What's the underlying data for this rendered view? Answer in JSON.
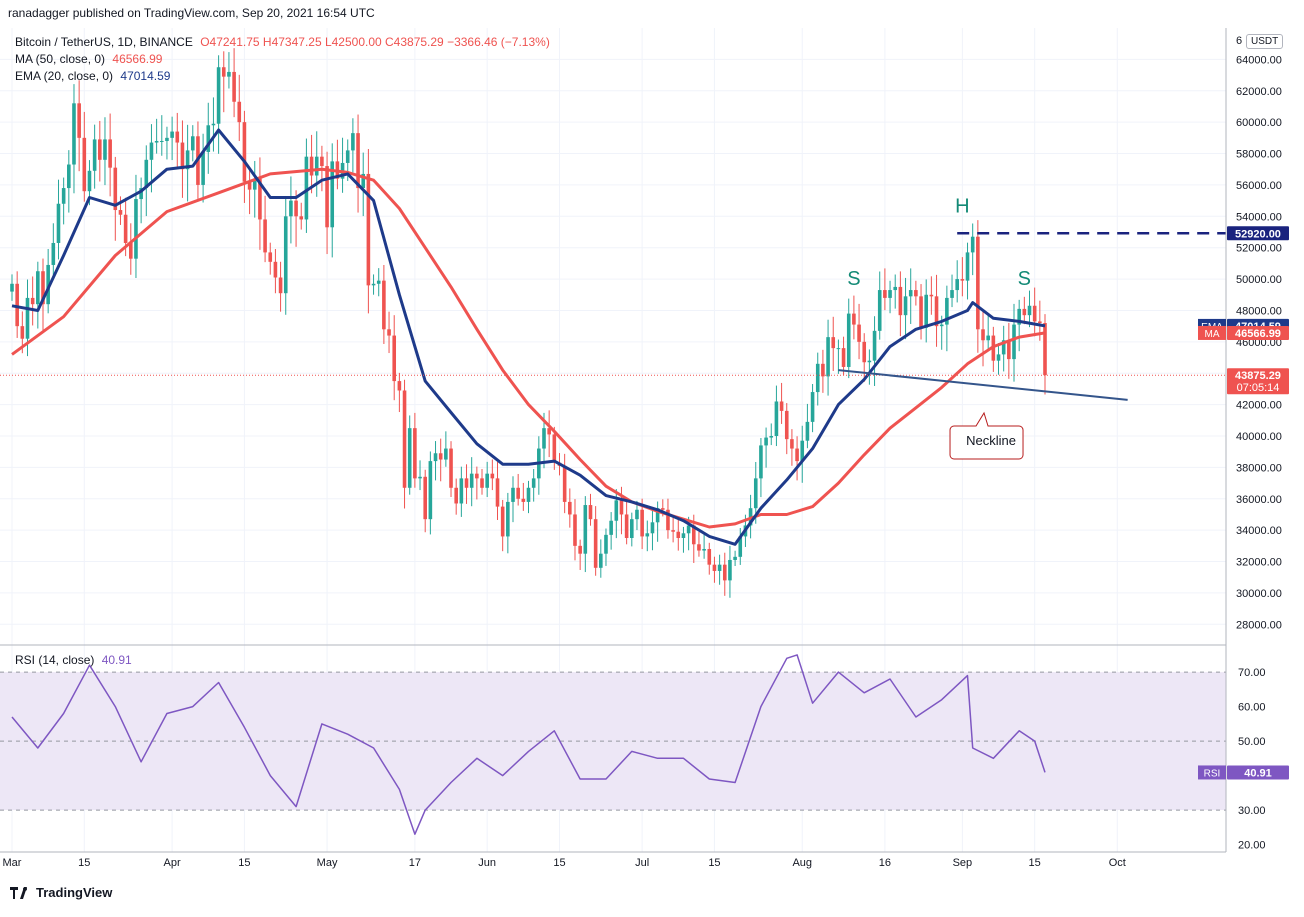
{
  "header": {
    "published": "ranadagger published on TradingView.com, Sep 20, 2021 16:54 UTC"
  },
  "legend": {
    "symbol": "Bitcoin / TetherUS, 1D, BINANCE",
    "ohlc": "O47241.75  H47347.25  L42500.00  C43875.29  −3366.46 (−7.13%)",
    "ma_label": "MA (50, close, 0)",
    "ma_value": "46566.99",
    "ema_label": "EMA (20, close, 0)",
    "ema_value": "47014.59",
    "rsi_label": "RSI (14, close)",
    "rsi_value": "40.91"
  },
  "colors": {
    "up": "#26a69a",
    "down": "#ef5350",
    "ma": "#ef5350",
    "ema": "#1e3a8a",
    "rsi": "#7e57c2",
    "rsi_band": "#ede7f6",
    "neckline": "#34558b",
    "resistance": "#1a237e"
  },
  "currency_badge": "USDT",
  "price_axis": {
    "ticks": [
      "28000.00",
      "30000.00",
      "32000.00",
      "34000.00",
      "36000.00",
      "38000.00",
      "40000.00",
      "42000.00",
      "44000.00",
      "46000.00",
      "48000.00",
      "50000.00",
      "52000.00",
      "54000.00",
      "56000.00",
      "58000.00",
      "60000.00",
      "62000.00",
      "64000.00"
    ],
    "tick_values": [
      28000,
      30000,
      32000,
      34000,
      36000,
      38000,
      40000,
      42000,
      44000,
      46000,
      48000,
      50000,
      52000,
      54000,
      56000,
      58000,
      60000,
      62000,
      64000
    ],
    "top_partial": "6"
  },
  "rsi_axis": {
    "ticks": [
      "20.00",
      "30.00",
      "40.00",
      "50.00",
      "60.00",
      "70.00"
    ],
    "tick_values": [
      20,
      30,
      40,
      50,
      60,
      70
    ]
  },
  "time_axis": {
    "labels": [
      "Mar",
      "15",
      "Apr",
      "15",
      "May",
      "17",
      "Jun",
      "15",
      "Jul",
      "15",
      "Aug",
      "16",
      "Sep",
      "15",
      "Oct"
    ],
    "label_days": [
      0,
      14,
      31,
      45,
      61,
      78,
      92,
      106,
      122,
      136,
      153,
      169,
      184,
      198,
      214
    ]
  },
  "badges": {
    "ema": {
      "name": "EMA",
      "value": "47014.59"
    },
    "ma": {
      "name": "MA",
      "value": "46566.99"
    },
    "price": {
      "value": "43875.29",
      "countdown": "07:05:14"
    },
    "resistance": {
      "value": "52920.00"
    },
    "rsi": {
      "name": "RSI",
      "value": "40.91"
    }
  },
  "annotations": {
    "head": "H",
    "shoulder_left": "S",
    "shoulder_right": "S",
    "neckline": "Neckline"
  },
  "footer": {
    "brand": "TradingView"
  },
  "chart_data": {
    "type": "candlestick",
    "title": "Bitcoin / TetherUS, 1D, BINANCE",
    "x_start": "2021-02-25",
    "x_end": "2021-10-04",
    "last_close": 43875.29,
    "ohlc_closes": [
      [
        0,
        49700
      ],
      [
        1,
        47000
      ],
      [
        2,
        46200
      ],
      [
        3,
        48800
      ],
      [
        4,
        48400
      ],
      [
        5,
        50500
      ],
      [
        6,
        48400
      ],
      [
        7,
        50900
      ],
      [
        8,
        52300
      ],
      [
        9,
        54800
      ],
      [
        10,
        55800
      ],
      [
        11,
        57300
      ],
      [
        12,
        61200
      ],
      [
        13,
        59000
      ],
      [
        14,
        55600
      ],
      [
        15,
        56900
      ],
      [
        16,
        58900
      ],
      [
        17,
        57600
      ],
      [
        18,
        58900
      ],
      [
        19,
        57100
      ],
      [
        20,
        54400
      ],
      [
        21,
        54100
      ],
      [
        22,
        52300
      ],
      [
        23,
        51300
      ],
      [
        24,
        55100
      ],
      [
        25,
        55800
      ],
      [
        26,
        57600
      ],
      [
        27,
        58700
      ],
      [
        28,
        58800
      ],
      [
        29,
        58800
      ],
      [
        30,
        59000
      ],
      [
        31,
        59400
      ],
      [
        32,
        58700
      ],
      [
        33,
        57000
      ],
      [
        34,
        58200
      ],
      [
        35,
        59100
      ],
      [
        36,
        56000
      ],
      [
        37,
        58100
      ],
      [
        38,
        59800
      ],
      [
        39,
        59900
      ],
      [
        40,
        63500
      ],
      [
        41,
        62900
      ],
      [
        42,
        63200
      ],
      [
        43,
        61300
      ],
      [
        44,
        60000
      ],
      [
        45,
        56200
      ],
      [
        46,
        55700
      ],
      [
        47,
        56400
      ],
      [
        48,
        53800
      ],
      [
        49,
        51700
      ],
      [
        50,
        51100
      ],
      [
        51,
        50100
      ],
      [
        52,
        49100
      ],
      [
        53,
        54000
      ],
      [
        54,
        55000
      ],
      [
        55,
        54000
      ],
      [
        56,
        53800
      ],
      [
        57,
        57800
      ],
      [
        58,
        56600
      ],
      [
        59,
        57800
      ],
      [
        60,
        57200
      ],
      [
        61,
        53300
      ],
      [
        62,
        57500
      ],
      [
        63,
        56400
      ],
      [
        64,
        57400
      ],
      [
        65,
        58200
      ],
      [
        66,
        59300
      ],
      [
        67,
        55800
      ],
      [
        68,
        56700
      ],
      [
        69,
        49600
      ],
      [
        70,
        49700
      ],
      [
        71,
        49900
      ],
      [
        72,
        46800
      ],
      [
        73,
        46400
      ],
      [
        74,
        43500
      ],
      [
        75,
        42900
      ],
      [
        76,
        36700
      ],
      [
        77,
        40500
      ],
      [
        78,
        37300
      ],
      [
        79,
        37400
      ],
      [
        80,
        34700
      ],
      [
        81,
        38400
      ],
      [
        82,
        38900
      ],
      [
        83,
        38500
      ],
      [
        84,
        39200
      ],
      [
        85,
        36700
      ],
      [
        86,
        35700
      ],
      [
        87,
        37300
      ],
      [
        88,
        36700
      ],
      [
        89,
        37600
      ],
      [
        90,
        37300
      ],
      [
        91,
        36700
      ],
      [
        92,
        37600
      ],
      [
        93,
        37300
      ],
      [
        94,
        35500
      ],
      [
        95,
        33600
      ],
      [
        96,
        35800
      ],
      [
        97,
        36700
      ],
      [
        98,
        36000
      ],
      [
        99,
        35800
      ],
      [
        100,
        36700
      ],
      [
        101,
        37300
      ],
      [
        102,
        39200
      ],
      [
        103,
        40500
      ],
      [
        104,
        40100
      ],
      [
        105,
        38300
      ],
      [
        106,
        38100
      ],
      [
        107,
        35800
      ],
      [
        108,
        35000
      ],
      [
        109,
        33000
      ],
      [
        110,
        32500
      ],
      [
        111,
        35600
      ],
      [
        112,
        34700
      ],
      [
        113,
        31600
      ],
      [
        114,
        32500
      ],
      [
        115,
        33700
      ],
      [
        116,
        34600
      ],
      [
        117,
        35900
      ],
      [
        118,
        35000
      ],
      [
        119,
        33500
      ],
      [
        120,
        34700
      ],
      [
        121,
        35300
      ],
      [
        122,
        33600
      ],
      [
        123,
        33800
      ],
      [
        124,
        34500
      ],
      [
        125,
        35400
      ],
      [
        126,
        35300
      ],
      [
        127,
        34000
      ],
      [
        128,
        33900
      ],
      [
        129,
        33500
      ],
      [
        130,
        33800
      ],
      [
        131,
        34300
      ],
      [
        132,
        33100
      ],
      [
        133,
        32700
      ],
      [
        134,
        32800
      ],
      [
        135,
        31800
      ],
      [
        136,
        31400
      ],
      [
        137,
        31800
      ],
      [
        138,
        30800
      ],
      [
        139,
        32100
      ],
      [
        140,
        32300
      ],
      [
        141,
        33600
      ],
      [
        142,
        34300
      ],
      [
        143,
        35400
      ],
      [
        144,
        37300
      ],
      [
        145,
        39400
      ],
      [
        146,
        39900
      ],
      [
        147,
        40000
      ],
      [
        148,
        42200
      ],
      [
        149,
        41600
      ],
      [
        150,
        39800
      ],
      [
        151,
        39200
      ],
      [
        152,
        38400
      ],
      [
        153,
        39700
      ],
      [
        154,
        40900
      ],
      [
        155,
        42800
      ],
      [
        156,
        44600
      ],
      [
        157,
        43800
      ],
      [
        158,
        46300
      ],
      [
        159,
        45600
      ],
      [
        160,
        45600
      ],
      [
        161,
        44400
      ],
      [
        162,
        47800
      ],
      [
        163,
        47100
      ],
      [
        164,
        46000
      ],
      [
        165,
        44700
      ],
      [
        166,
        44800
      ],
      [
        167,
        46700
      ],
      [
        168,
        49300
      ],
      [
        169,
        48800
      ],
      [
        170,
        49300
      ],
      [
        171,
        49500
      ],
      [
        172,
        47700
      ],
      [
        173,
        48900
      ],
      [
        174,
        49300
      ],
      [
        175,
        48900
      ],
      [
        176,
        46900
      ],
      [
        177,
        49000
      ],
      [
        178,
        48900
      ],
      [
        179,
        47000
      ],
      [
        180,
        47100
      ],
      [
        181,
        48800
      ],
      [
        182,
        49300
      ],
      [
        183,
        50000
      ],
      [
        184,
        49900
      ],
      [
        185,
        51700
      ],
      [
        186,
        52700
      ],
      [
        187,
        46800
      ],
      [
        188,
        46100
      ],
      [
        189,
        46400
      ],
      [
        190,
        44800
      ],
      [
        191,
        45200
      ],
      [
        192,
        46100
      ],
      [
        193,
        44900
      ],
      [
        194,
        47100
      ],
      [
        195,
        48100
      ],
      [
        196,
        47700
      ],
      [
        197,
        48300
      ],
      [
        198,
        47300
      ],
      [
        199,
        47200
      ],
      [
        200,
        43875
      ]
    ],
    "ma50_points": [
      [
        0,
        45200
      ],
      [
        10,
        47600
      ],
      [
        20,
        51500
      ],
      [
        30,
        54300
      ],
      [
        40,
        55500
      ],
      [
        50,
        56700
      ],
      [
        60,
        57000
      ],
      [
        65,
        56800
      ],
      [
        70,
        56300
      ],
      [
        75,
        54500
      ],
      [
        80,
        52000
      ],
      [
        85,
        49500
      ],
      [
        90,
        46800
      ],
      [
        95,
        44200
      ],
      [
        100,
        42000
      ],
      [
        105,
        40300
      ],
      [
        110,
        38500
      ],
      [
        115,
        36800
      ],
      [
        120,
        35800
      ],
      [
        125,
        35200
      ],
      [
        130,
        34700
      ],
      [
        135,
        34200
      ],
      [
        140,
        34400
      ],
      [
        145,
        35000
      ],
      [
        150,
        35000
      ],
      [
        155,
        35500
      ],
      [
        160,
        37000
      ],
      [
        165,
        38800
      ],
      [
        170,
        40500
      ],
      [
        175,
        41800
      ],
      [
        180,
        43100
      ],
      [
        185,
        44600
      ],
      [
        190,
        45700
      ],
      [
        195,
        46300
      ],
      [
        200,
        46567
      ]
    ],
    "ema20_points": [
      [
        0,
        48300
      ],
      [
        5,
        48000
      ],
      [
        10,
        51500
      ],
      [
        15,
        55200
      ],
      [
        20,
        54700
      ],
      [
        25,
        55600
      ],
      [
        30,
        57000
      ],
      [
        35,
        57200
      ],
      [
        40,
        59500
      ],
      [
        45,
        57500
      ],
      [
        50,
        55200
      ],
      [
        55,
        55200
      ],
      [
        60,
        56300
      ],
      [
        65,
        56700
      ],
      [
        70,
        55000
      ],
      [
        75,
        49000
      ],
      [
        80,
        43500
      ],
      [
        85,
        41500
      ],
      [
        90,
        39500
      ],
      [
        95,
        38200
      ],
      [
        100,
        38200
      ],
      [
        105,
        38400
      ],
      [
        110,
        37500
      ],
      [
        115,
        36200
      ],
      [
        120,
        35800
      ],
      [
        125,
        35300
      ],
      [
        130,
        34600
      ],
      [
        135,
        33600
      ],
      [
        140,
        33100
      ],
      [
        145,
        35400
      ],
      [
        150,
        37200
      ],
      [
        155,
        39200
      ],
      [
        160,
        42000
      ],
      [
        165,
        43600
      ],
      [
        170,
        45700
      ],
      [
        175,
        46800
      ],
      [
        180,
        47300
      ],
      [
        185,
        48000
      ],
      [
        186,
        48500
      ],
      [
        190,
        47500
      ],
      [
        195,
        47300
      ],
      [
        200,
        47015
      ]
    ],
    "rsi_points": [
      [
        0,
        57
      ],
      [
        5,
        48
      ],
      [
        10,
        58
      ],
      [
        15,
        72
      ],
      [
        20,
        60
      ],
      [
        25,
        44
      ],
      [
        30,
        58
      ],
      [
        35,
        60
      ],
      [
        40,
        67
      ],
      [
        45,
        54
      ],
      [
        50,
        40
      ],
      [
        55,
        31
      ],
      [
        60,
        55
      ],
      [
        65,
        52
      ],
      [
        70,
        48
      ],
      [
        75,
        36
      ],
      [
        78,
        23
      ],
      [
        80,
        30
      ],
      [
        85,
        38
      ],
      [
        90,
        45
      ],
      [
        95,
        40
      ],
      [
        100,
        47
      ],
      [
        105,
        53
      ],
      [
        110,
        39
      ],
      [
        115,
        39
      ],
      [
        120,
        47
      ],
      [
        125,
        45
      ],
      [
        130,
        45
      ],
      [
        135,
        39
      ],
      [
        140,
        38
      ],
      [
        145,
        60
      ],
      [
        150,
        74
      ],
      [
        152,
        75
      ],
      [
        155,
        61
      ],
      [
        160,
        70
      ],
      [
        165,
        64
      ],
      [
        170,
        68
      ],
      [
        175,
        57
      ],
      [
        180,
        62
      ],
      [
        185,
        69
      ],
      [
        186,
        48
      ],
      [
        190,
        45
      ],
      [
        195,
        53
      ],
      [
        198,
        50
      ],
      [
        200,
        40.91
      ]
    ],
    "rsi_levels": {
      "upper": 70,
      "middle": 50,
      "lower": 30
    },
    "resistance_level": 52920.0,
    "neckline": [
      {
        "day": 160,
        "price": 44200
      },
      {
        "day": 216,
        "price": 42300
      }
    ],
    "pattern": "head and shoulders",
    "ylim": [
      27000,
      66000
    ],
    "rsi_ylim": [
      19,
      77
    ]
  }
}
